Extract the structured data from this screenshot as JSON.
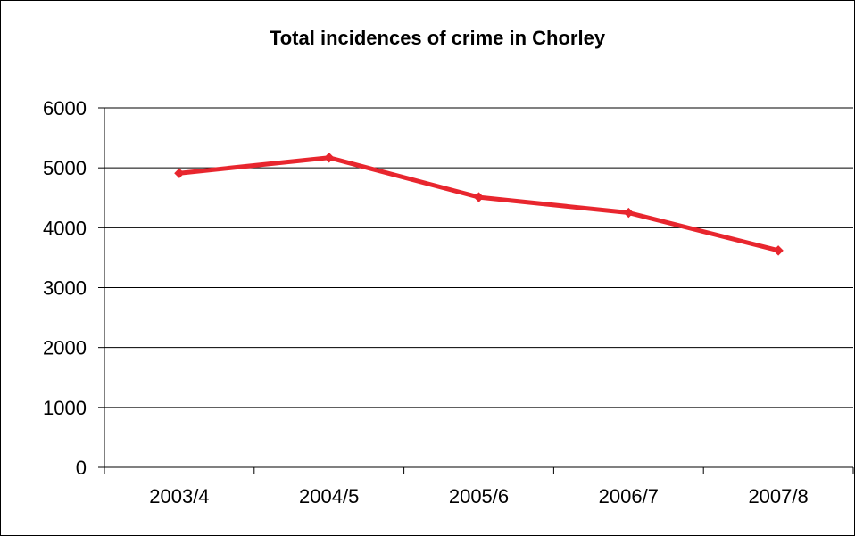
{
  "chart_data": {
    "type": "line",
    "title": "Total incidences of crime in Chorley",
    "xlabel": "",
    "ylabel": "",
    "categories": [
      "2003/4",
      "2004/5",
      "2005/6",
      "2006/7",
      "2007/8"
    ],
    "series": [
      {
        "values": [
          4910,
          5170,
          4510,
          4250,
          3620
        ],
        "color": "#e8262e"
      }
    ],
    "ylim": [
      0,
      6000
    ],
    "yticks": [
      "0",
      "1000",
      "2000",
      "3000",
      "4000",
      "5000",
      "6000"
    ],
    "grid": true,
    "legend": "none"
  }
}
